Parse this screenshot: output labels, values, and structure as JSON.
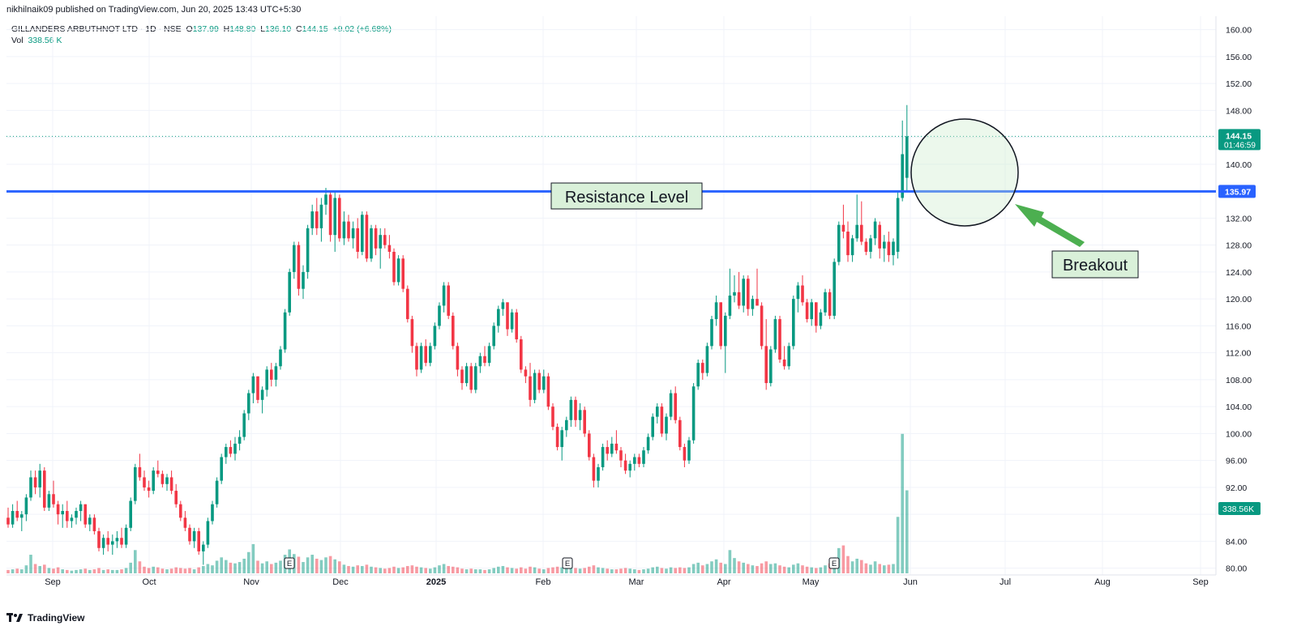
{
  "header": {
    "published": "nikhilnaik09 published on TradingView.com, Jun 20, 2025 13:43 UTC+5:30",
    "symbol": "GILLANDERS ARBUTHNOT LTD · 1D · NSE",
    "o_label": "O",
    "o": "137.99",
    "h_label": "H",
    "h": "148.80",
    "l_label": "L",
    "l": "136.10",
    "c_label": "C",
    "c": "144.15",
    "change": "+9.02 (+6.68%)",
    "vol_label": "Vol",
    "vol": "338.56 K"
  },
  "branding": {
    "logo_text": "TradingView"
  },
  "colors": {
    "up": "#089981",
    "down": "#f23645",
    "resistance": "#2962ff",
    "annotation_bg": "#d9f0d9",
    "arrow": "#4caf50"
  },
  "chart_data": {
    "type": "candlestick",
    "y_ticks": [
      80,
      84,
      88,
      92,
      96,
      100,
      104,
      108,
      112,
      116,
      120,
      124,
      128,
      132,
      136,
      140,
      144,
      148,
      152,
      156,
      160
    ],
    "y_tick_labels": [
      "80.00",
      "84.00",
      "",
      "92.00",
      "96.00",
      "100.00",
      "104.00",
      "108.00",
      "112.00",
      "116.00",
      "120.00",
      "124.00",
      "128.00",
      "132.00",
      "",
      "140.00",
      "",
      "148.00",
      "152.00",
      "156.00",
      "160.00"
    ],
    "ylim": [
      79,
      162
    ],
    "x_tick_labels": [
      "Sep",
      "Oct",
      "Nov",
      "Dec",
      "2025",
      "Feb",
      "Mar",
      "Apr",
      "May",
      "Jun",
      "Jul",
      "Aug",
      "Sep"
    ],
    "last_price": {
      "value": "144.15",
      "countdown": "01:46:59",
      "y": 144.15
    },
    "resistance": {
      "value": "135.97",
      "y": 135.97,
      "label": "Resistance Level"
    },
    "volume_label": "338.56K",
    "events": [
      "E",
      "E",
      "E"
    ],
    "annotations": {
      "breakout": "Breakout"
    },
    "candles": [
      [
        87.5,
        89.0,
        86.0,
        86.5,
        0.5
      ],
      [
        86.5,
        89.5,
        86.0,
        88.5,
        0.6
      ],
      [
        88.5,
        90.0,
        87.0,
        87.5,
        0.7
      ],
      [
        87.5,
        88.5,
        85.5,
        88.0,
        0.6
      ],
      [
        88.0,
        91.0,
        87.0,
        90.5,
        1.2
      ],
      [
        90.5,
        94.5,
        90.0,
        93.5,
        2.8
      ],
      [
        93.5,
        94.5,
        91.0,
        92.0,
        1.4
      ],
      [
        92.0,
        95.5,
        90.5,
        94.5,
        1.1
      ],
      [
        94.5,
        95.0,
        88.5,
        89.0,
        1.3
      ],
      [
        89.0,
        91.5,
        88.5,
        91.0,
        0.8
      ],
      [
        91.0,
        93.0,
        89.0,
        89.5,
        0.7
      ],
      [
        89.5,
        90.0,
        86.5,
        88.0,
        0.9
      ],
      [
        88.0,
        89.5,
        86.0,
        88.5,
        0.6
      ],
      [
        88.5,
        90.0,
        86.0,
        87.0,
        0.5
      ],
      [
        87.0,
        88.0,
        86.0,
        87.5,
        0.4
      ],
      [
        87.5,
        89.0,
        86.5,
        88.5,
        0.5
      ],
      [
        88.5,
        90.0,
        87.0,
        89.5,
        0.6
      ],
      [
        89.5,
        89.5,
        86.0,
        86.5,
        0.7
      ],
      [
        86.5,
        88.0,
        85.5,
        87.5,
        0.5
      ],
      [
        87.5,
        88.0,
        85.0,
        85.5,
        0.6
      ],
      [
        85.5,
        86.0,
        82.5,
        83.0,
        0.8
      ],
      [
        83.0,
        85.0,
        82.0,
        84.5,
        0.5
      ],
      [
        84.5,
        85.5,
        82.5,
        83.5,
        0.6
      ],
      [
        83.5,
        85.0,
        82.0,
        84.0,
        0.5
      ],
      [
        84.0,
        85.5,
        83.0,
        84.5,
        0.5
      ],
      [
        84.5,
        86.0,
        83.0,
        83.5,
        0.6
      ],
      [
        83.5,
        86.5,
        83.0,
        86.0,
        0.8
      ],
      [
        86.0,
        90.5,
        85.5,
        90.0,
        1.6
      ],
      [
        90.0,
        95.5,
        89.5,
        95.0,
        3.5
      ],
      [
        95.0,
        97.0,
        93.0,
        93.5,
        1.8
      ],
      [
        93.5,
        94.5,
        91.5,
        92.0,
        1.0
      ],
      [
        92.0,
        93.0,
        90.5,
        91.5,
        0.8
      ],
      [
        91.5,
        95.0,
        91.0,
        94.5,
        1.0
      ],
      [
        94.5,
        96.0,
        93.5,
        94.0,
        0.9
      ],
      [
        94.0,
        94.5,
        92.0,
        92.5,
        0.7
      ],
      [
        92.5,
        94.0,
        91.5,
        93.5,
        0.6
      ],
      [
        93.5,
        94.5,
        91.0,
        91.5,
        0.7
      ],
      [
        91.5,
        92.5,
        89.0,
        89.5,
        0.9
      ],
      [
        89.5,
        90.0,
        87.0,
        87.5,
        0.8
      ],
      [
        87.5,
        88.5,
        85.5,
        86.0,
        0.7
      ],
      [
        86.0,
        86.5,
        83.5,
        84.0,
        0.8
      ],
      [
        84.0,
        86.0,
        83.0,
        85.5,
        0.6
      ],
      [
        85.5,
        86.0,
        82.0,
        82.5,
        0.9
      ],
      [
        82.5,
        84.0,
        80.5,
        83.5,
        1.1
      ],
      [
        83.5,
        87.5,
        83.0,
        87.0,
        1.4
      ],
      [
        87.0,
        90.0,
        86.5,
        89.5,
        1.2
      ],
      [
        89.5,
        93.5,
        89.0,
        93.0,
        1.9
      ],
      [
        93.0,
        97.0,
        92.5,
        96.5,
        2.4
      ],
      [
        96.5,
        98.5,
        95.5,
        98.0,
        2.0
      ],
      [
        98.0,
        99.0,
        96.5,
        97.0,
        1.6
      ],
      [
        97.0,
        99.5,
        96.0,
        98.5,
        1.5
      ],
      [
        98.5,
        100.5,
        97.5,
        99.5,
        1.7
      ],
      [
        99.5,
        103.5,
        99.0,
        103.0,
        2.2
      ],
      [
        103.0,
        106.5,
        102.0,
        106.0,
        3.2
      ],
      [
        106.0,
        109.0,
        104.5,
        108.5,
        4.4
      ],
      [
        108.5,
        108.5,
        104.5,
        105.0,
        1.9
      ],
      [
        105.0,
        107.0,
        103.0,
        106.5,
        1.5
      ],
      [
        106.5,
        110.0,
        105.5,
        109.5,
        1.8
      ],
      [
        109.5,
        110.5,
        107.0,
        108.0,
        1.4
      ],
      [
        108.0,
        110.5,
        107.0,
        110.0,
        1.6
      ],
      [
        110.0,
        113.0,
        109.5,
        112.5,
        1.9
      ],
      [
        112.5,
        118.5,
        112.0,
        118.0,
        2.8
      ],
      [
        118.0,
        124.5,
        117.5,
        124.0,
        3.6
      ],
      [
        124.0,
        128.5,
        123.0,
        128.0,
        2.9
      ],
      [
        128.0,
        128.5,
        120.5,
        121.5,
        2.5
      ],
      [
        121.5,
        125.0,
        120.0,
        124.0,
        1.7
      ],
      [
        124.0,
        131.0,
        123.0,
        130.5,
        2.4
      ],
      [
        130.5,
        134.0,
        129.5,
        133.0,
        2.8
      ],
      [
        133.0,
        135.0,
        129.5,
        130.5,
        2.2
      ],
      [
        130.5,
        135.0,
        128.5,
        134.0,
        2.0
      ],
      [
        134.0,
        136.5,
        132.5,
        135.5,
        2.4
      ],
      [
        135.5,
        136.0,
        128.5,
        129.5,
        2.6
      ],
      [
        129.5,
        136.0,
        127.0,
        135.0,
        2.1
      ],
      [
        135.0,
        135.5,
        128.5,
        129.0,
        1.8
      ],
      [
        129.0,
        133.0,
        128.0,
        131.5,
        1.3
      ],
      [
        131.5,
        132.5,
        128.5,
        129.0,
        1.1
      ],
      [
        129.0,
        131.5,
        127.5,
        130.5,
        1.0
      ],
      [
        130.5,
        132.0,
        126.0,
        127.0,
        1.2
      ],
      [
        127.0,
        133.0,
        126.5,
        132.5,
        1.1
      ],
      [
        132.5,
        133.0,
        125.5,
        126.0,
        1.3
      ],
      [
        126.0,
        131.0,
        125.5,
        130.5,
        1.0
      ],
      [
        130.5,
        131.0,
        126.5,
        127.5,
        0.9
      ],
      [
        127.5,
        130.5,
        124.5,
        129.5,
        0.8
      ],
      [
        129.5,
        130.5,
        127.5,
        128.0,
        0.7
      ],
      [
        128.0,
        129.5,
        126.0,
        127.0,
        0.8
      ],
      [
        127.0,
        127.5,
        122.0,
        122.5,
        1.0
      ],
      [
        122.5,
        126.5,
        122.0,
        126.0,
        0.8
      ],
      [
        126.0,
        126.5,
        121.0,
        121.5,
        0.9
      ],
      [
        121.5,
        122.0,
        116.5,
        117.0,
        1.1
      ],
      [
        117.0,
        117.5,
        112.0,
        113.0,
        1.2
      ],
      [
        113.0,
        113.5,
        108.5,
        109.5,
        1.0
      ],
      [
        109.5,
        113.5,
        109.0,
        113.0,
        0.9
      ],
      [
        113.0,
        114.0,
        110.0,
        110.5,
        0.8
      ],
      [
        110.5,
        113.5,
        110.0,
        113.0,
        0.7
      ],
      [
        113.0,
        116.5,
        112.5,
        116.0,
        0.9
      ],
      [
        116.0,
        119.5,
        115.5,
        119.0,
        1.2
      ],
      [
        119.0,
        122.5,
        118.0,
        122.0,
        1.4
      ],
      [
        122.0,
        122.5,
        117.0,
        117.5,
        1.1
      ],
      [
        117.5,
        118.0,
        112.5,
        113.0,
        1.0
      ],
      [
        113.0,
        113.5,
        108.5,
        109.5,
        0.9
      ],
      [
        109.5,
        110.0,
        106.5,
        107.5,
        0.7
      ],
      [
        107.5,
        110.5,
        107.0,
        110.0,
        0.6
      ],
      [
        110.0,
        110.5,
        106.0,
        106.5,
        0.7
      ],
      [
        106.5,
        110.5,
        106.0,
        110.0,
        0.6
      ],
      [
        110.0,
        112.0,
        109.0,
        111.5,
        0.6
      ],
      [
        111.5,
        113.0,
        110.0,
        110.5,
        0.5
      ],
      [
        110.5,
        113.5,
        110.0,
        113.0,
        0.6
      ],
      [
        113.0,
        116.5,
        112.5,
        116.0,
        0.8
      ],
      [
        116.0,
        119.0,
        115.0,
        118.5,
        1.0
      ],
      [
        118.5,
        120.0,
        117.5,
        119.5,
        1.1
      ],
      [
        119.5,
        119.5,
        114.5,
        115.5,
        0.9
      ],
      [
        115.5,
        118.5,
        115.0,
        118.0,
        0.8
      ],
      [
        118.0,
        118.5,
        113.5,
        114.0,
        0.7
      ],
      [
        114.0,
        114.5,
        109.0,
        109.5,
        0.9
      ],
      [
        109.5,
        110.0,
        107.5,
        108.5,
        0.7
      ],
      [
        108.5,
        110.5,
        104.0,
        105.0,
        1.0
      ],
      [
        105.0,
        109.5,
        104.5,
        109.0,
        0.9
      ],
      [
        109.0,
        109.5,
        106.0,
        106.5,
        0.7
      ],
      [
        106.5,
        109.5,
        106.0,
        108.5,
        0.6
      ],
      [
        108.5,
        109.0,
        103.5,
        104.0,
        0.8
      ],
      [
        104.0,
        104.5,
        100.5,
        101.0,
        0.9
      ],
      [
        101.0,
        101.5,
        97.5,
        98.0,
        1.0
      ],
      [
        98.0,
        101.0,
        96.0,
        100.5,
        0.9
      ],
      [
        100.5,
        102.5,
        99.5,
        102.0,
        0.8
      ],
      [
        102.0,
        105.5,
        101.0,
        105.0,
        1.0
      ],
      [
        105.0,
        105.5,
        101.0,
        102.0,
        0.8
      ],
      [
        102.0,
        104.5,
        100.5,
        103.5,
        0.7
      ],
      [
        103.5,
        104.0,
        99.5,
        100.0,
        0.8
      ],
      [
        100.0,
        100.5,
        96.0,
        96.5,
        1.0
      ],
      [
        96.5,
        97.0,
        92.0,
        93.0,
        1.2
      ],
      [
        93.0,
        95.5,
        92.0,
        95.0,
        0.9
      ],
      [
        95.0,
        98.5,
        94.5,
        98.0,
        0.8
      ],
      [
        98.0,
        99.0,
        96.0,
        97.0,
        0.7
      ],
      [
        97.0,
        99.5,
        96.5,
        98.5,
        0.6
      ],
      [
        98.5,
        100.5,
        97.0,
        97.5,
        0.6
      ],
      [
        97.5,
        98.0,
        95.0,
        96.0,
        0.7
      ],
      [
        96.0,
        97.0,
        94.0,
        94.5,
        0.8
      ],
      [
        94.5,
        96.0,
        93.5,
        95.5,
        0.7
      ],
      [
        95.5,
        97.0,
        94.5,
        96.5,
        0.6
      ],
      [
        96.5,
        97.0,
        95.0,
        95.5,
        0.5
      ],
      [
        95.5,
        98.0,
        95.0,
        97.5,
        0.6
      ],
      [
        97.5,
        100.0,
        97.0,
        99.5,
        0.7
      ],
      [
        99.5,
        103.0,
        99.0,
        102.5,
        0.9
      ],
      [
        102.5,
        104.5,
        101.5,
        104.0,
        1.0
      ],
      [
        104.0,
        104.5,
        99.5,
        100.0,
        0.8
      ],
      [
        100.0,
        103.0,
        99.0,
        102.5,
        0.7
      ],
      [
        102.5,
        106.5,
        102.0,
        106.0,
        0.9
      ],
      [
        106.0,
        107.0,
        101.5,
        102.0,
        0.8
      ],
      [
        102.0,
        102.5,
        97.5,
        98.0,
        0.9
      ],
      [
        98.0,
        98.5,
        95.0,
        96.0,
        0.8
      ],
      [
        96.0,
        99.5,
        95.5,
        99.0,
        0.9
      ],
      [
        99.0,
        107.5,
        98.5,
        107.0,
        1.4
      ],
      [
        107.0,
        111.0,
        106.5,
        110.5,
        1.6
      ],
      [
        110.5,
        111.0,
        108.0,
        109.0,
        1.2
      ],
      [
        109.0,
        113.5,
        108.5,
        113.0,
        1.4
      ],
      [
        113.0,
        117.5,
        112.5,
        117.0,
        1.8
      ],
      [
        117.0,
        120.5,
        116.0,
        119.5,
        2.1
      ],
      [
        119.5,
        119.5,
        112.5,
        113.0,
        1.6
      ],
      [
        113.0,
        118.0,
        109.0,
        117.5,
        1.4
      ],
      [
        117.5,
        124.5,
        117.0,
        120.5,
        3.5
      ],
      [
        120.5,
        123.5,
        119.5,
        121.0,
        2.3
      ],
      [
        121.0,
        124.0,
        118.5,
        119.0,
        1.8
      ],
      [
        119.0,
        123.5,
        118.0,
        123.0,
        1.6
      ],
      [
        123.0,
        123.5,
        117.5,
        118.5,
        1.4
      ],
      [
        118.5,
        120.5,
        117.5,
        120.0,
        1.2
      ],
      [
        120.0,
        124.5,
        119.5,
        119.0,
        1.1
      ],
      [
        119.0,
        119.5,
        112.5,
        113.0,
        1.5
      ],
      [
        113.0,
        117.0,
        106.5,
        107.5,
        1.8
      ],
      [
        107.5,
        113.0,
        107.0,
        112.5,
        1.4
      ],
      [
        112.5,
        117.5,
        112.0,
        117.0,
        1.5
      ],
      [
        117.0,
        117.5,
        110.5,
        111.0,
        1.2
      ],
      [
        111.0,
        113.0,
        109.5,
        110.0,
        1.0
      ],
      [
        110.0,
        113.5,
        109.5,
        113.0,
        0.9
      ],
      [
        113.0,
        120.5,
        112.5,
        120.0,
        1.3
      ],
      [
        120.0,
        122.5,
        118.0,
        122.0,
        1.5
      ],
      [
        122.0,
        123.5,
        119.0,
        119.5,
        1.2
      ],
      [
        119.5,
        120.0,
        116.5,
        117.0,
        1.0
      ],
      [
        117.0,
        120.0,
        116.0,
        119.5,
        0.9
      ],
      [
        119.5,
        119.5,
        115.0,
        116.0,
        0.8
      ],
      [
        116.0,
        118.5,
        115.5,
        118.0,
        0.9
      ],
      [
        118.0,
        121.5,
        117.5,
        121.0,
        1.2
      ],
      [
        121.0,
        121.5,
        117.0,
        117.5,
        1.5
      ],
      [
        117.5,
        126.0,
        117.0,
        125.5,
        2.4
      ],
      [
        125.5,
        131.5,
        125.0,
        131.0,
        3.8
      ],
      [
        131.0,
        134.0,
        129.0,
        130.0,
        4.2
      ],
      [
        130.0,
        131.5,
        125.5,
        126.5,
        2.6
      ],
      [
        126.5,
        129.5,
        125.5,
        129.0,
        1.8
      ],
      [
        129.0,
        135.5,
        128.5,
        131.0,
        2.2
      ],
      [
        131.0,
        134.5,
        128.0,
        128.5,
        2.0
      ],
      [
        128.5,
        129.0,
        126.5,
        127.0,
        1.5
      ],
      [
        127.0,
        129.5,
        126.0,
        129.0,
        1.3
      ],
      [
        129.0,
        132.0,
        128.0,
        131.5,
        1.8
      ],
      [
        131.0,
        131.5,
        126.0,
        127.5,
        1.4
      ],
      [
        127.5,
        129.5,
        125.5,
        128.5,
        1.2
      ],
      [
        128.5,
        130.0,
        125.5,
        126.5,
        1.3
      ],
      [
        126.5,
        129.0,
        125.0,
        128.5,
        1.4
      ],
      [
        127.0,
        136.0,
        126.0,
        135.0,
        8.5
      ],
      [
        135.0,
        146.5,
        134.5,
        141.5,
        21.0
      ],
      [
        137.99,
        148.8,
        136.1,
        144.15,
        12.5
      ]
    ]
  }
}
